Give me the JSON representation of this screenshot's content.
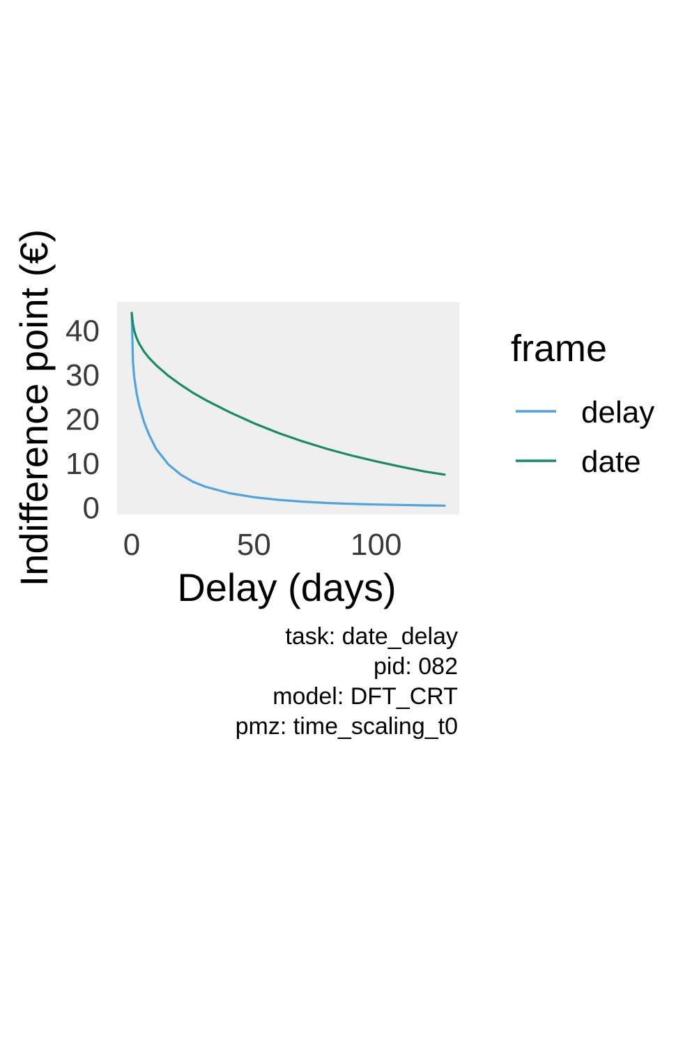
{
  "chart_data": {
    "type": "line",
    "title": "",
    "xlabel": "Delay (days)",
    "ylabel": "Indifference point (€)",
    "xlim": [
      -6,
      134
    ],
    "ylim": [
      -1.5,
      46.5
    ],
    "x_ticks": [
      0,
      50,
      100
    ],
    "y_ticks": [
      0,
      10,
      20,
      30,
      40
    ],
    "grid": false,
    "panel_background": "#efefef",
    "legend": {
      "title": "frame",
      "position": "right",
      "entries": [
        {
          "label": "delay",
          "color": "#4da3e3"
        },
        {
          "label": "date",
          "color": "#178c5e"
        }
      ]
    },
    "series": [
      {
        "name": "delay",
        "color": "#4da3e3",
        "x": [
          0,
          0.5,
          1,
          2,
          3,
          5,
          7,
          10,
          15,
          20,
          25,
          30,
          40,
          50,
          60,
          70,
          80,
          90,
          100,
          110,
          120,
          128
        ],
        "y": [
          44,
          33,
          29.5,
          25.8,
          23.2,
          19.4,
          16.6,
          13.3,
          9.8,
          7.5,
          5.9,
          4.8,
          3.3,
          2.4,
          1.8,
          1.4,
          1.1,
          0.9,
          0.75,
          0.65,
          0.55,
          0.5
        ]
      },
      {
        "name": "date",
        "color": "#178c5e",
        "x": [
          0,
          0.5,
          1,
          2,
          3,
          5,
          7,
          10,
          15,
          20,
          25,
          30,
          40,
          50,
          60,
          70,
          80,
          90,
          100,
          110,
          120,
          128
        ],
        "y": [
          44,
          41.5,
          40,
          38.3,
          37.1,
          35.3,
          33.9,
          32.2,
          29.8,
          27.8,
          26,
          24.4,
          21.6,
          19.1,
          16.9,
          15,
          13.3,
          11.8,
          10.5,
          9.3,
          8.2,
          7.5
        ]
      }
    ],
    "caption": [
      "task: date_delay",
      "pid: 082",
      "model: DFT_CRT",
      "pmz: time_scaling_t0"
    ]
  }
}
